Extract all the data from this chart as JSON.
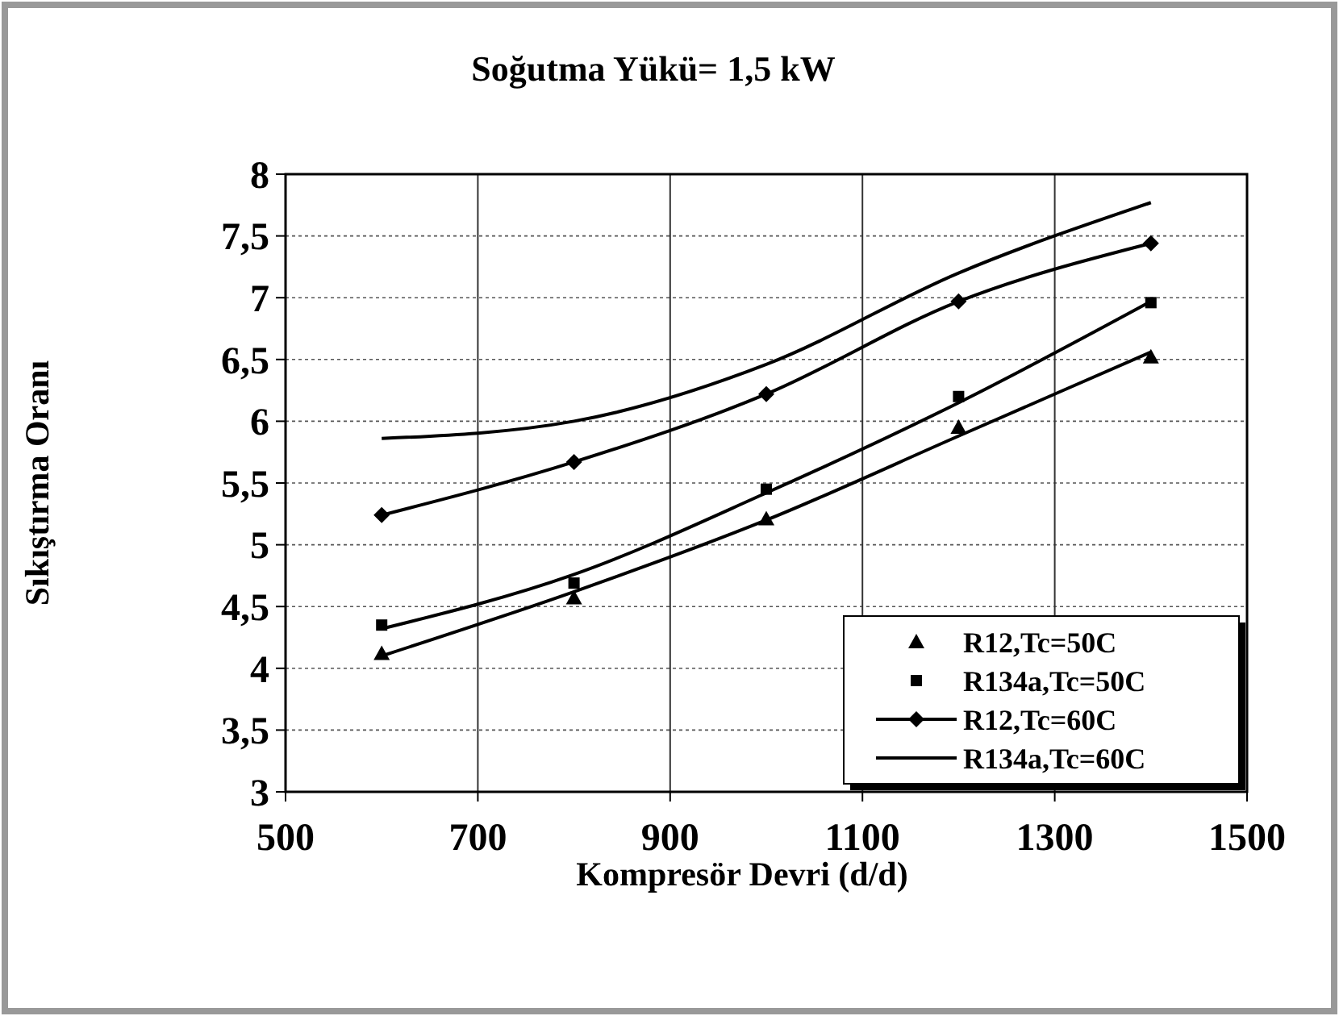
{
  "chart_data": {
    "type": "line",
    "title": "Soğutma Yükü= 1,5 kW",
    "xlabel": "Kompresör Devri (d/d)",
    "ylabel": "Sıkıştırma Oranı",
    "x": [
      600,
      800,
      1000,
      1200,
      1400
    ],
    "series": [
      {
        "name": "R12,Tc=50C",
        "type": "scatter",
        "marker": "triangle",
        "color": "#000000",
        "values": [
          4.12,
          4.57,
          5.21,
          5.95,
          6.52
        ]
      },
      {
        "name": "R134a,Tc=50C",
        "type": "scatter",
        "marker": "square",
        "color": "#000000",
        "values": [
          4.35,
          4.69,
          5.45,
          6.2,
          6.96
        ]
      },
      {
        "name": "R12,Tc=60C",
        "type": "line",
        "marker": "diamond",
        "color": "#000000",
        "values": [
          5.24,
          5.67,
          6.22,
          6.97,
          7.44
        ]
      },
      {
        "name": "R134a,Tc=60C",
        "type": "line",
        "marker": "none",
        "color": "#000000",
        "values": [
          5.86,
          6.0,
          6.46,
          7.2,
          7.77
        ]
      },
      {
        "type": "line",
        "marker": "none",
        "color": "#000000",
        "x": [
          600,
          800,
          1000,
          1200,
          1400
        ],
        "values": [
          4.1,
          4.62,
          5.2,
          5.88,
          6.56
        ]
      },
      {
        "type": "line",
        "marker": "none",
        "color": "#000000",
        "x": [
          600,
          800,
          1000,
          1200,
          1400
        ],
        "values": [
          4.32,
          4.76,
          5.42,
          6.15,
          6.97
        ]
      }
    ],
    "xlim": [
      500,
      1500
    ],
    "xticks": [
      500,
      700,
      900,
      1100,
      1300,
      1500
    ],
    "ylim": [
      3,
      8
    ],
    "yticks": [
      3,
      {
        "value": 3.5,
        "label": "3,5"
      },
      4,
      {
        "value": 4.5,
        "label": "4,5"
      },
      5,
      {
        "value": 5.5,
        "label": "5,5"
      },
      6,
      {
        "value": 6.5,
        "label": "6,5"
      },
      7,
      {
        "value": 7.5,
        "label": "7,5"
      },
      8
    ],
    "grid": true,
    "legend": "bottom right",
    "line_style": "solid"
  }
}
